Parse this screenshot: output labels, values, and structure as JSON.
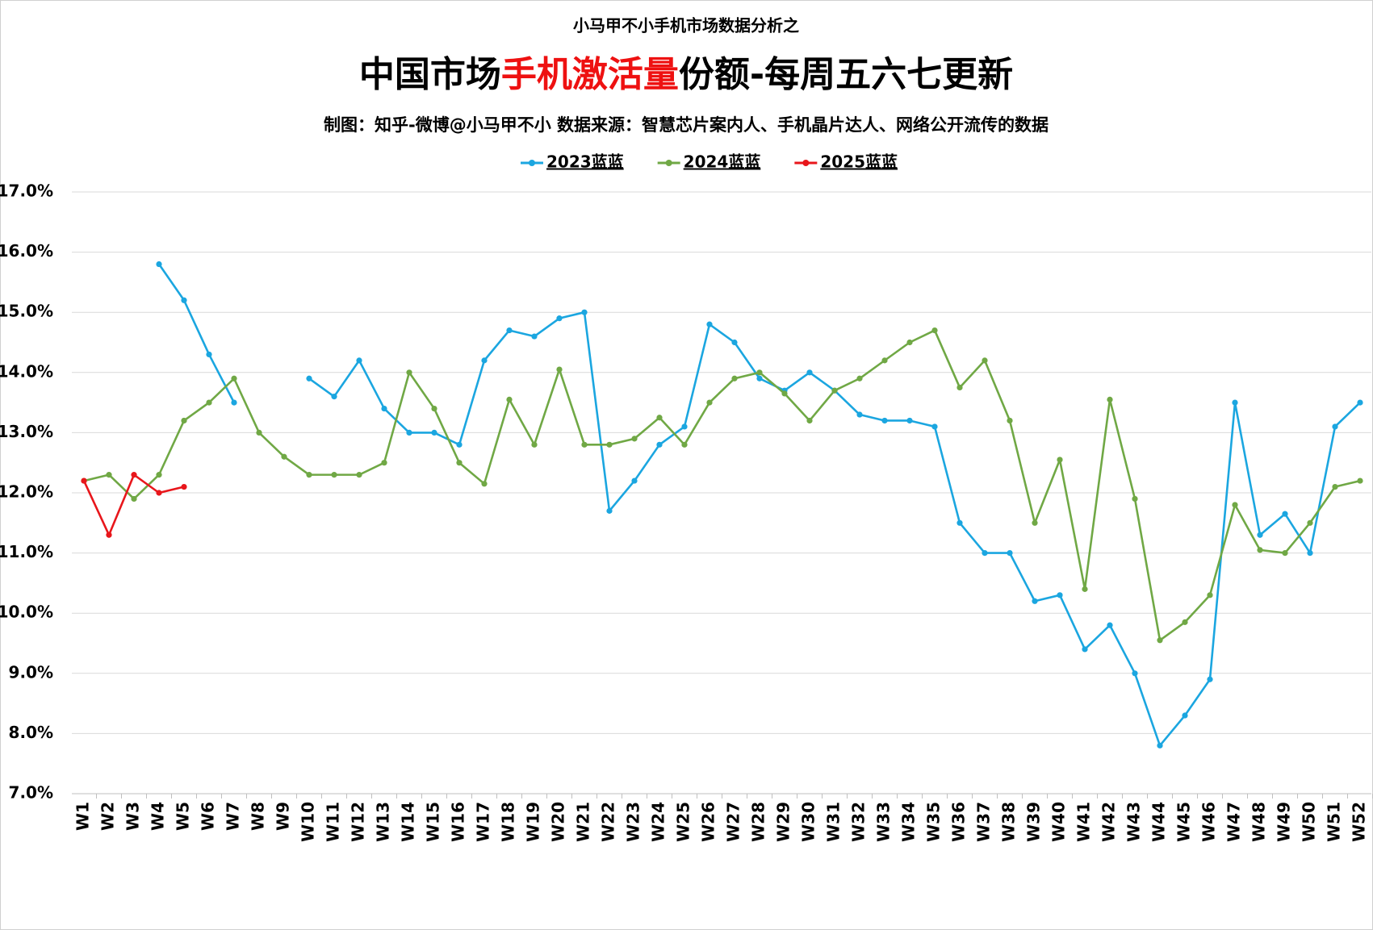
{
  "chart_data": {
    "type": "line",
    "subtitle": "小马甲不小手机市场数据分析之",
    "title": [
      "中国市场",
      "手机激活量",
      "份额-每周五六七更新"
    ],
    "title_colors": [
      "#000000",
      "#ee1111",
      "#000000"
    ],
    "source": "制图：知乎-微博@小马甲不小  数据来源：智慧芯片案内人、手机晶片达人、网络公开流传的数据",
    "categories": [
      "W1",
      "W2",
      "W3",
      "W4",
      "W5",
      "W6",
      "W7",
      "W8",
      "W9",
      "W10",
      "W11",
      "W12",
      "W13",
      "W14",
      "W15",
      "W16",
      "W17",
      "W18",
      "W19",
      "W20",
      "W21",
      "W22",
      "W23",
      "W24",
      "W25",
      "W26",
      "W27",
      "W28",
      "W29",
      "W30",
      "W31",
      "W32",
      "W33",
      "W34",
      "W35",
      "W36",
      "W37",
      "W38",
      "W39",
      "W40",
      "W41",
      "W42",
      "W43",
      "W44",
      "W45",
      "W46",
      "W47",
      "W48",
      "W49",
      "W50",
      "W51",
      "W52"
    ],
    "series": [
      {
        "name": "2023蓝蓝",
        "color": "#1ba6e0",
        "values": [
          null,
          null,
          null,
          15.8,
          15.2,
          14.3,
          13.5,
          null,
          null,
          13.9,
          13.6,
          14.2,
          13.4,
          13.0,
          13.0,
          12.8,
          14.2,
          14.7,
          14.6,
          14.9,
          15.0,
          11.7,
          12.2,
          12.8,
          13.1,
          14.8,
          14.5,
          13.9,
          13.7,
          14.0,
          13.7,
          13.3,
          13.2,
          13.2,
          13.1,
          11.5,
          11.0,
          11.0,
          10.2,
          10.3,
          9.4,
          9.8,
          9.0,
          7.8,
          8.3,
          8.9,
          13.5,
          11.3,
          11.65,
          11.0,
          13.1,
          13.5
        ]
      },
      {
        "name": "2024蓝蓝",
        "color": "#70a845",
        "values": [
          12.2,
          12.3,
          11.9,
          12.3,
          13.2,
          13.5,
          13.9,
          13.0,
          12.6,
          12.3,
          12.3,
          12.3,
          12.5,
          14.0,
          13.4,
          12.5,
          12.15,
          13.55,
          12.8,
          14.05,
          12.8,
          12.8,
          12.9,
          13.25,
          12.8,
          13.5,
          13.9,
          14.0,
          13.65,
          13.2,
          13.7,
          13.9,
          14.2,
          14.5,
          14.7,
          13.75,
          14.2,
          13.2,
          11.5,
          12.55,
          10.4,
          13.55,
          11.9,
          9.55,
          9.85,
          10.3,
          11.8,
          11.05,
          11.0,
          11.5,
          12.1,
          12.2
        ]
      },
      {
        "name": "2025蓝蓝",
        "color": "#e8161b",
        "values": [
          12.2,
          11.3,
          12.3,
          12.0,
          12.1,
          null,
          null,
          null,
          null,
          null,
          null,
          null,
          null,
          null,
          null,
          null,
          null,
          null,
          null,
          null,
          null,
          null,
          null,
          null,
          null,
          null,
          null,
          null,
          null,
          null,
          null,
          null,
          null,
          null,
          null,
          null,
          null,
          null,
          null,
          null,
          null,
          null,
          null,
          null,
          null,
          null,
          null,
          null,
          null,
          null,
          null,
          null
        ]
      }
    ],
    "ylim": [
      7,
      17
    ],
    "yticks": [
      {
        "value": 7,
        "label": "7.0%"
      },
      {
        "value": 8,
        "label": "8.0%"
      },
      {
        "value": 9,
        "label": "9.0%"
      },
      {
        "value": 10,
        "label": "10.0%"
      },
      {
        "value": 11,
        "label": "11.0%"
      },
      {
        "value": 12,
        "label": "12.0%"
      },
      {
        "value": 13,
        "label": "13.0%"
      },
      {
        "value": 14,
        "label": "14.0%"
      },
      {
        "value": 15,
        "label": "15.0%"
      },
      {
        "value": 16,
        "label": "16.0%"
      },
      {
        "value": 17,
        "label": "17.0%"
      }
    ],
    "grid": true,
    "legend": "top"
  }
}
